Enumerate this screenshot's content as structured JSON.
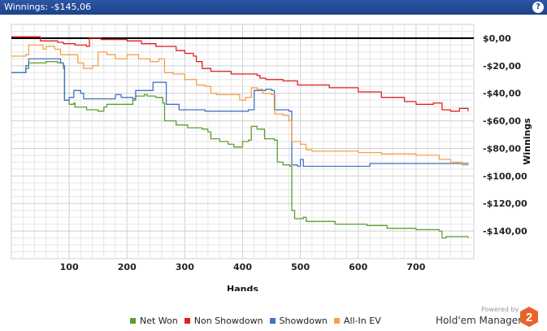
{
  "window": {
    "title": "Winnings: -$145,06",
    "help_icon": "question-icon",
    "help_label": "?"
  },
  "branding": {
    "powered_by": "Powered by",
    "product": "Hold'em Manager",
    "badge": "2",
    "badge_color": "#e8622a"
  },
  "chart_data": {
    "type": "line",
    "xlabel": "Hands",
    "ylabel": "Winnings",
    "xlim": [
      0,
      800
    ],
    "ylim": [
      -160,
      10
    ],
    "x_ticks": [
      100,
      200,
      300,
      400,
      500,
      600,
      700
    ],
    "x_tick_labels": [
      "100",
      "200",
      "300",
      "400",
      "500",
      "600",
      "700"
    ],
    "y_ticks": [
      0,
      -20,
      -40,
      -60,
      -80,
      -100,
      -120,
      -140
    ],
    "y_tick_labels": [
      "$0,00",
      "-$20,00",
      "-$40,00",
      "-$60,00",
      "-$80,00",
      "-$100,00",
      "-$120,00",
      "-$140,00"
    ],
    "grid": true,
    "zero_line": true,
    "legend_position": "bottom",
    "series": [
      {
        "name": "Net Won",
        "color": "#5aa02c",
        "points": [
          [
            0,
            -25
          ],
          [
            15,
            -25
          ],
          [
            25,
            -22
          ],
          [
            30,
            -18
          ],
          [
            60,
            -17
          ],
          [
            80,
            -18
          ],
          [
            90,
            -22
          ],
          [
            92,
            -45
          ],
          [
            100,
            -48
          ],
          [
            108,
            -47
          ],
          [
            110,
            -50
          ],
          [
            130,
            -52
          ],
          [
            150,
            -53
          ],
          [
            160,
            -50
          ],
          [
            165,
            -48
          ],
          [
            200,
            -48
          ],
          [
            210,
            -45
          ],
          [
            215,
            -42
          ],
          [
            230,
            -41
          ],
          [
            235,
            -42
          ],
          [
            250,
            -43
          ],
          [
            262,
            -47
          ],
          [
            265,
            -60
          ],
          [
            285,
            -63
          ],
          [
            305,
            -65
          ],
          [
            330,
            -66
          ],
          [
            340,
            -68
          ],
          [
            345,
            -73
          ],
          [
            360,
            -75
          ],
          [
            375,
            -77
          ],
          [
            385,
            -79
          ],
          [
            395,
            -79
          ],
          [
            400,
            -75
          ],
          [
            410,
            -74
          ],
          [
            415,
            -64
          ],
          [
            425,
            -66
          ],
          [
            438,
            -73
          ],
          [
            455,
            -74
          ],
          [
            460,
            -90
          ],
          [
            470,
            -92
          ],
          [
            482,
            -93
          ],
          [
            485,
            -125
          ],
          [
            490,
            -131
          ],
          [
            505,
            -130
          ],
          [
            510,
            -133
          ],
          [
            560,
            -135
          ],
          [
            615,
            -136
          ],
          [
            650,
            -138
          ],
          [
            700,
            -139
          ],
          [
            740,
            -140
          ],
          [
            745,
            -145
          ],
          [
            752,
            -144
          ],
          [
            765,
            -144
          ],
          [
            775,
            -144
          ],
          [
            790,
            -145
          ]
        ]
      },
      {
        "name": "Non Showdown",
        "color": "#e0201f",
        "points": [
          [
            0,
            1
          ],
          [
            30,
            1
          ],
          [
            50,
            -2
          ],
          [
            80,
            -3
          ],
          [
            90,
            -4
          ],
          [
            110,
            -5
          ],
          [
            130,
            -6
          ],
          [
            135,
            0
          ],
          [
            155,
            -1
          ],
          [
            200,
            -2
          ],
          [
            225,
            -4
          ],
          [
            250,
            -6
          ],
          [
            285,
            -9
          ],
          [
            300,
            -11
          ],
          [
            315,
            -13
          ],
          [
            320,
            -17
          ],
          [
            330,
            -22
          ],
          [
            345,
            -24
          ],
          [
            380,
            -26
          ],
          [
            395,
            -26
          ],
          [
            425,
            -27
          ],
          [
            430,
            -29
          ],
          [
            440,
            -30
          ],
          [
            470,
            -31
          ],
          [
            495,
            -34
          ],
          [
            550,
            -36
          ],
          [
            600,
            -39
          ],
          [
            640,
            -43
          ],
          [
            680,
            -46
          ],
          [
            700,
            -48
          ],
          [
            720,
            -48
          ],
          [
            730,
            -47
          ],
          [
            745,
            -52
          ],
          [
            760,
            -53
          ],
          [
            775,
            -51
          ],
          [
            790,
            -53
          ]
        ]
      },
      {
        "name": "Showdown",
        "color": "#4472c4",
        "points": [
          [
            0,
            -25
          ],
          [
            20,
            -25
          ],
          [
            25,
            -20
          ],
          [
            30,
            -15
          ],
          [
            80,
            -15
          ],
          [
            85,
            -18
          ],
          [
            90,
            -20
          ],
          [
            92,
            -45
          ],
          [
            100,
            -43
          ],
          [
            108,
            -38
          ],
          [
            120,
            -40
          ],
          [
            125,
            -44
          ],
          [
            170,
            -44
          ],
          [
            180,
            -41
          ],
          [
            190,
            -43
          ],
          [
            210,
            -44
          ],
          [
            215,
            -38
          ],
          [
            240,
            -38
          ],
          [
            245,
            -32
          ],
          [
            265,
            -32
          ],
          [
            268,
            -48
          ],
          [
            280,
            -48
          ],
          [
            290,
            -52
          ],
          [
            335,
            -53
          ],
          [
            405,
            -53
          ],
          [
            410,
            -52
          ],
          [
            420,
            -38
          ],
          [
            440,
            -37
          ],
          [
            450,
            -38
          ],
          [
            455,
            -52
          ],
          [
            470,
            -52
          ],
          [
            480,
            -53
          ],
          [
            485,
            -92
          ],
          [
            495,
            -93
          ],
          [
            500,
            -88
          ],
          [
            505,
            -93
          ],
          [
            600,
            -93
          ],
          [
            620,
            -91
          ],
          [
            700,
            -91
          ],
          [
            790,
            -92
          ]
        ]
      },
      {
        "name": "All-In EV",
        "color": "#f5a04a",
        "points": [
          [
            0,
            -13
          ],
          [
            25,
            -12
          ],
          [
            30,
            -5
          ],
          [
            45,
            -5
          ],
          [
            55,
            -8
          ],
          [
            60,
            -6
          ],
          [
            75,
            -8
          ],
          [
            85,
            -12
          ],
          [
            100,
            -12
          ],
          [
            115,
            -18
          ],
          [
            125,
            -22
          ],
          [
            140,
            -20
          ],
          [
            150,
            -10
          ],
          [
            165,
            -12
          ],
          [
            180,
            -15
          ],
          [
            200,
            -12
          ],
          [
            220,
            -15
          ],
          [
            240,
            -17
          ],
          [
            255,
            -15
          ],
          [
            265,
            -25
          ],
          [
            280,
            -26
          ],
          [
            300,
            -30
          ],
          [
            320,
            -34
          ],
          [
            335,
            -35
          ],
          [
            345,
            -40
          ],
          [
            355,
            -41
          ],
          [
            385,
            -41
          ],
          [
            395,
            -45
          ],
          [
            405,
            -43
          ],
          [
            415,
            -36
          ],
          [
            425,
            -37
          ],
          [
            435,
            -40
          ],
          [
            450,
            -41
          ],
          [
            456,
            -55
          ],
          [
            470,
            -56
          ],
          [
            480,
            -60
          ],
          [
            485,
            -75
          ],
          [
            500,
            -77
          ],
          [
            510,
            -81
          ],
          [
            520,
            -82
          ],
          [
            600,
            -83
          ],
          [
            640,
            -84
          ],
          [
            700,
            -85
          ],
          [
            740,
            -88
          ],
          [
            760,
            -90
          ],
          [
            780,
            -92
          ],
          [
            790,
            -91
          ]
        ]
      }
    ]
  }
}
